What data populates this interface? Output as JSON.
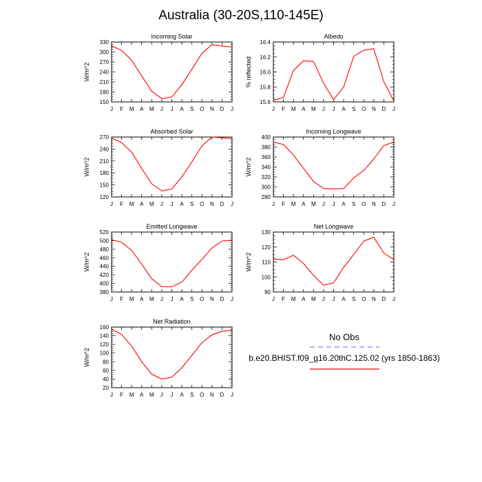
{
  "page": {
    "title": "Australia (30-20S,110-145E)"
  },
  "colors": {
    "model_line": "#ff0000",
    "obs_line": "#8080ff",
    "axis": "#000000"
  },
  "legend": {
    "obs_label": "No Obs",
    "model_label": "b.e20.BHIST.f09_g16.20thC.125.02 (yrs 1850-1863)"
  },
  "chart_data": [
    {
      "type": "line",
      "title": "Incoming Solar",
      "ylabel": "W/m^2",
      "categories": [
        "J",
        "F",
        "M",
        "A",
        "M",
        "J",
        "J",
        "A",
        "S",
        "O",
        "N",
        "D",
        "J"
      ],
      "ylim": [
        150,
        330
      ],
      "yticks": [
        150,
        180,
        210,
        240,
        270,
        300,
        330
      ],
      "series": [
        {
          "values": [
            318,
            305,
            275,
            228,
            182,
            160,
            165,
            202,
            248,
            296,
            322,
            318,
            315
          ]
        }
      ]
    },
    {
      "type": "line",
      "title": "Albedo",
      "ylabel": "% reflected",
      "categories": [
        "J",
        "F",
        "M",
        "A",
        "M",
        "J",
        "J",
        "A",
        "S",
        "O",
        "N",
        "D",
        "J"
      ],
      "ylim": [
        15.6,
        16.4
      ],
      "yticks": [
        15.6,
        15.8,
        16.0,
        16.2,
        16.4
      ],
      "series": [
        {
          "values": [
            15.62,
            15.66,
            16.02,
            16.15,
            16.14,
            15.85,
            15.63,
            15.8,
            16.21,
            16.29,
            16.31,
            15.87,
            15.61
          ]
        }
      ]
    },
    {
      "type": "line",
      "title": "Absorbed Solar",
      "ylabel": "W/m^2",
      "categories": [
        "J",
        "F",
        "M",
        "A",
        "M",
        "J",
        "J",
        "A",
        "S",
        "O",
        "N",
        "D",
        "J"
      ],
      "ylim": [
        120,
        270
      ],
      "yticks": [
        120,
        150,
        180,
        210,
        240,
        270
      ],
      "series": [
        {
          "values": [
            268,
            256,
            232,
            191,
            153,
            135,
            140,
            170,
            208,
            248,
            270,
            268,
            266
          ]
        }
      ]
    },
    {
      "type": "line",
      "title": "Incoming Longwave",
      "ylabel": "W/m^2",
      "categories": [
        "J",
        "F",
        "M",
        "A",
        "M",
        "J",
        "J",
        "A",
        "S",
        "O",
        "N",
        "D",
        "J"
      ],
      "ylim": [
        280,
        400
      ],
      "yticks": [
        280,
        300,
        320,
        340,
        360,
        380,
        400
      ],
      "series": [
        {
          "values": [
            390,
            385,
            364,
            337,
            311,
            297,
            296,
            297,
            318,
            333,
            356,
            383,
            390
          ]
        }
      ]
    },
    {
      "type": "line",
      "title": "Emitted Longwave",
      "ylabel": "W/m^2",
      "categories": [
        "J",
        "F",
        "M",
        "A",
        "M",
        "J",
        "J",
        "A",
        "S",
        "O",
        "N",
        "D",
        "J"
      ],
      "ylim": [
        380,
        520
      ],
      "yticks": [
        380,
        400,
        420,
        440,
        460,
        480,
        500,
        520
      ],
      "series": [
        {
          "values": [
            502,
            496,
            477,
            445,
            411,
            392,
            392,
            403,
            431,
            456,
            483,
            499,
            501
          ]
        }
      ]
    },
    {
      "type": "line",
      "title": "Net Longwave",
      "ylabel": "W/m^2",
      "categories": [
        "J",
        "F",
        "M",
        "A",
        "M",
        "J",
        "J",
        "A",
        "S",
        "O",
        "N",
        "D",
        "J"
      ],
      "ylim": [
        90,
        130
      ],
      "yticks": [
        90,
        100,
        110,
        120,
        130
      ],
      "series": [
        {
          "values": [
            112,
            111.5,
            114.5,
            109,
            101,
            94.5,
            96,
            106.5,
            115,
            124,
            126.5,
            116,
            111.5
          ]
        }
      ]
    },
    {
      "type": "line",
      "title": "Net Radiation",
      "ylabel": "W/m^2",
      "categories": [
        "J",
        "F",
        "M",
        "A",
        "M",
        "J",
        "J",
        "A",
        "S",
        "O",
        "N",
        "D",
        "J"
      ],
      "ylim": [
        20,
        160
      ],
      "yticks": [
        20,
        40,
        60,
        80,
        100,
        120,
        140,
        160
      ],
      "series": [
        {
          "values": [
            155,
            143,
            116,
            80,
            51,
            40,
            44,
            66,
            95,
            124,
            142,
            150,
            153
          ]
        }
      ]
    }
  ]
}
